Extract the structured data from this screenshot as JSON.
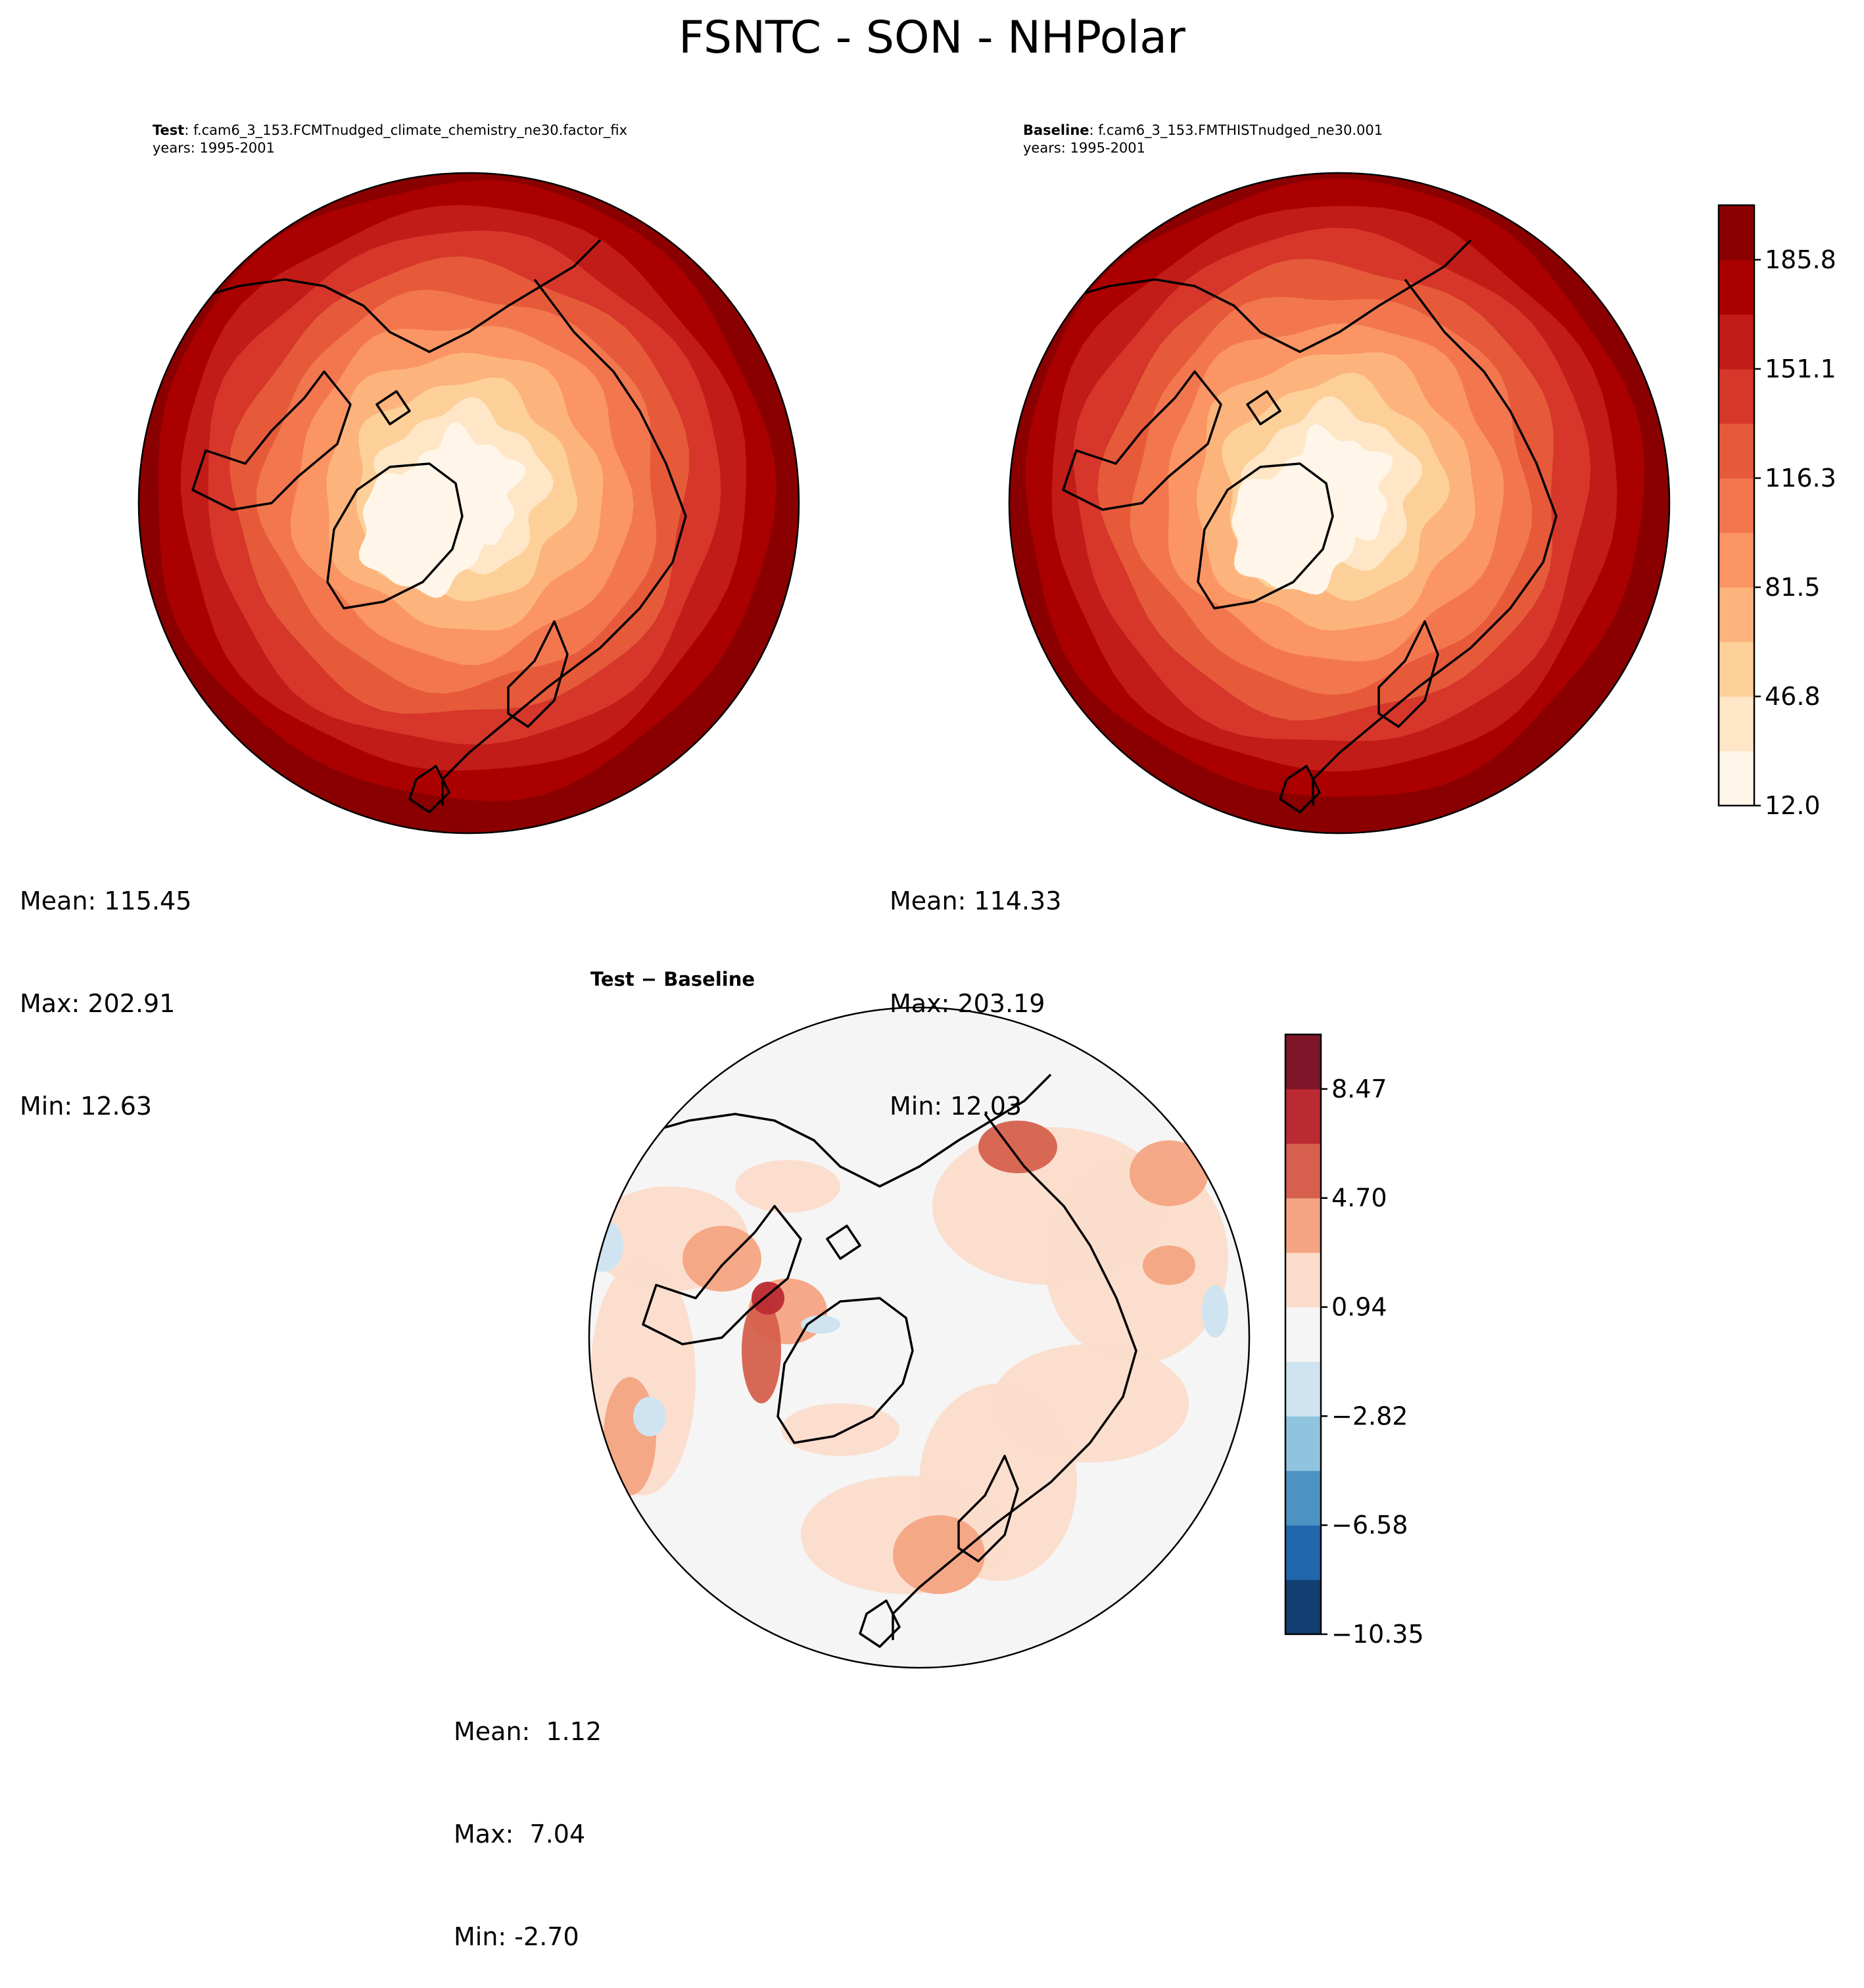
{
  "suptitle": "FSNTC - SON - NHPolar",
  "panels": {
    "test": {
      "label": "Test",
      "case": "f.cam6_3_153.FCMTnudged_climate_chemistry_ne30.factor_fix",
      "years": "years: 1995-2001",
      "mean": "Mean: 115.45",
      "max": "Max: 202.91",
      "min": "Min: 12.63"
    },
    "baseline": {
      "label": "Baseline",
      "case": "f.cam6_3_153.FMTHISTnudged_ne30.001",
      "years": "years: 1995-2001",
      "mean": "Mean: 114.33",
      "max": "Max: 203.19",
      "min": "Min: 12.03"
    },
    "diff": {
      "title": "Test − Baseline",
      "mean": "Mean:  1.12",
      "max": "Max:  7.04",
      "min": "Min: -2.70"
    }
  },
  "chart_data": [
    {
      "type": "heatmap",
      "projection": "north polar stereographic",
      "panel": "test",
      "colormap": "OrRd",
      "levels": [
        12.0,
        29.4,
        46.8,
        64.2,
        81.5,
        98.9,
        116.3,
        133.7,
        151.1,
        168.5,
        185.8,
        203.2
      ],
      "colorbar_ticks": [
        "12.0",
        "46.8",
        "81.5",
        "116.3",
        "151.1",
        "185.8"
      ],
      "mean": 115.45,
      "max": 202.91,
      "min": 12.63
    },
    {
      "type": "heatmap",
      "projection": "north polar stereographic",
      "panel": "baseline",
      "colormap": "OrRd",
      "levels": [
        12.0,
        29.4,
        46.8,
        64.2,
        81.5,
        98.9,
        116.3,
        133.7,
        151.1,
        168.5,
        185.8,
        203.2
      ],
      "colorbar_ticks": [
        "12.0",
        "46.8",
        "81.5",
        "116.3",
        "151.1",
        "185.8"
      ],
      "mean": 114.33,
      "max": 203.19,
      "min": 12.03
    },
    {
      "type": "heatmap",
      "projection": "north polar stereographic",
      "panel": "difference",
      "colormap": "RdBu_r",
      "levels": [
        -10.35,
        -8.47,
        -6.58,
        -4.7,
        -2.82,
        -0.94,
        0.94,
        2.82,
        4.7,
        6.58,
        8.47,
        10.35
      ],
      "colorbar_ticks": [
        "−10.35",
        "−6.58",
        "−2.82",
        "0.94",
        "4.70",
        "8.47"
      ],
      "mean": 1.12,
      "max": 7.04,
      "min": -2.7
    }
  ],
  "colors": {
    "abs_ramp": [
      "#fff5e8",
      "#fee6c6",
      "#fdd09a",
      "#fcb47c",
      "#fb9564",
      "#f3774e",
      "#e65a3a",
      "#d6372a",
      "#c11c17",
      "#ab0000",
      "#8a0000"
    ],
    "diff_ramp": [
      "#123e72",
      "#2167ac",
      "#4c93c3",
      "#90c4de",
      "#cfe4f0",
      "#f5f5f5",
      "#fbdccb",
      "#f4a482",
      "#d6604d",
      "#bb2a33",
      "#7f1528"
    ]
  }
}
